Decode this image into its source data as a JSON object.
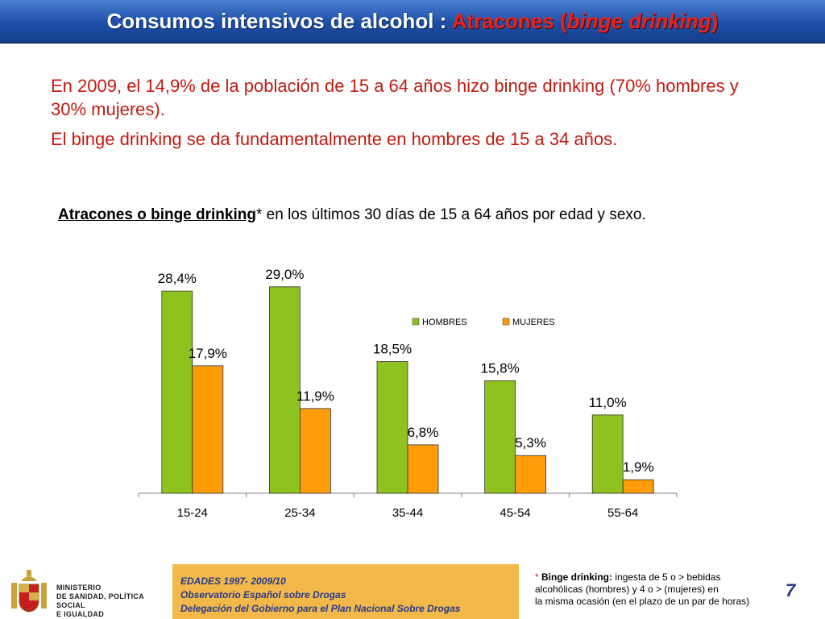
{
  "header": {
    "title_part1": "Consumos intensivos de alcohol : ",
    "title_part2": "Atracones (",
    "title_part3": "binge drinking",
    "title_part4": ")"
  },
  "intro": {
    "line1": "En 2009, el 14,9% de la población de 15 a 64 años hizo binge drinking (70% hombres y 30% mujeres).",
    "line2": "El binge drinking se da fundamentalmente en hombres de 15 a 34 años."
  },
  "chart_title": {
    "underlined": "Atracones o binge drinking",
    "rest": "* en los últimos 30 días de 15 a 64 años por edad y sexo."
  },
  "chart_data": {
    "type": "bar",
    "categories": [
      "15-24",
      "25-34",
      "35-44",
      "45-54",
      "55-64"
    ],
    "series": [
      {
        "name": "HOMBRES",
        "values": [
          28.4,
          29.0,
          18.5,
          15.8,
          11.0
        ],
        "labels": [
          "28,4%",
          "29,0%",
          "18,5%",
          "15,8%",
          "11,0%"
        ],
        "color": "#8dc21f"
      },
      {
        "name": "MUJERES",
        "values": [
          17.9,
          11.9,
          6.8,
          5.3,
          1.9
        ],
        "labels": [
          "17,9%",
          "11,9%",
          "6,8%",
          "5,3%",
          "1,9%"
        ],
        "color": "#ff9c0a"
      }
    ],
    "ylim": [
      0,
      30
    ],
    "legend": "top-right",
    "grid": false
  },
  "footer": {
    "ministry_line1": "MINISTERIO",
    "ministry_line2": "DE SANIDAD, POLÍTICA SOCIAL",
    "ministry_line3": "E IGUALDAD",
    "edades_line1": "EDADES 1997- 2009/10",
    "edades_line2": "Observatorio Español sobre Drogas",
    "edades_line3": "Delegación del Gobierno para el Plan Nacional Sobre Drogas",
    "note_star": "*",
    "note_bold": " Binge drinking:",
    "note_line1": " ingesta de 5 o > bebidas",
    "note_line2": "alcohólicas (hombres) y 4 o > (mujeres) en",
    "note_line3": "la misma ocasión (en el plazo de un par de horas)",
    "page_number": "7"
  }
}
